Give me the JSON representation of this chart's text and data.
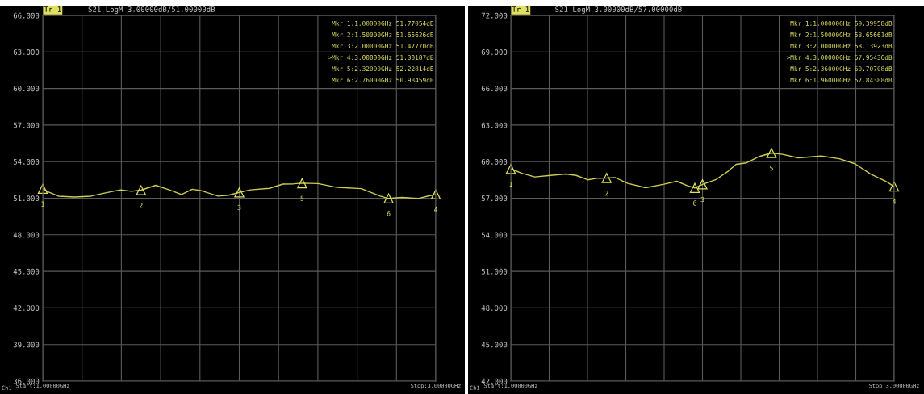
{
  "chart_data": [
    {
      "type": "line",
      "title": "S21 LogM 3.00000dB/51.00000dB",
      "x": [
        1.0,
        1.025,
        1.08,
        1.162,
        1.245,
        1.314,
        1.396,
        1.451,
        1.5,
        1.575,
        1.644,
        1.706,
        1.761,
        1.809,
        1.892,
        1.947,
        2.0,
        2.057,
        2.153,
        2.222,
        2.277,
        2.32,
        2.401,
        2.498,
        2.621,
        2.718,
        2.76,
        2.828,
        2.911,
        2.966,
        3.0
      ],
      "series": [
        {
          "color": "#cccc55",
          "values": [
            51.77,
            51.54,
            51.17,
            51.1,
            51.17,
            51.42,
            51.69,
            51.57,
            51.66,
            52.06,
            51.69,
            51.3,
            51.74,
            51.61,
            51.17,
            51.25,
            51.48,
            51.69,
            51.81,
            52.16,
            52.18,
            52.23,
            52.2,
            51.89,
            51.79,
            51.17,
            50.98,
            51.07,
            50.98,
            51.2,
            51.3
          ]
        }
      ],
      "xlim": [
        1,
        3
      ],
      "xticks": [
        {
          "value": 1,
          "label": "Start:1.00000GHz"
        },
        {
          "value": 1.2,
          "label": null
        },
        {
          "value": 1.4,
          "label": null
        },
        {
          "value": 1.6,
          "label": null
        },
        {
          "value": 1.8,
          "label": null
        },
        {
          "value": 2.0,
          "label": null
        },
        {
          "value": 2.2,
          "label": null
        },
        {
          "value": 2.4,
          "label": null
        },
        {
          "value": 2.6,
          "label": null
        },
        {
          "value": 2.8,
          "label": null
        },
        {
          "value": 3,
          "label": "Stop:3.00000GHz"
        }
      ],
      "ylim": [
        36,
        66
      ],
      "yticks": [
        {
          "value": 36,
          "label": "36.000"
        },
        {
          "value": 39,
          "label": "39.000"
        },
        {
          "value": 42,
          "label": "42.000"
        },
        {
          "value": 45,
          "label": "45.000"
        },
        {
          "value": 48,
          "label": "48.000"
        },
        {
          "value": 51,
          "label": "51.000"
        },
        {
          "value": 54,
          "label": "54.000"
        },
        {
          "value": 57,
          "label": "57.000"
        },
        {
          "value": 60,
          "label": "60.000"
        },
        {
          "value": 63,
          "label": "63.000"
        },
        {
          "value": 66,
          "label": "66.000"
        }
      ],
      "grid": true,
      "annotations": [
        "Tr 1",
        "Mkr 1:1.00000GHz 51.77054dB",
        "Mkr 2:1.50000GHz 51.65626dB",
        "Mkr 3:2.00000GHz 51.47770dB",
        ">Mkr 4:3.00000GHz 51.30187dB",
        "Mkr 5:2.32000GHz 52.22814dB",
        "Mkr 6:2.76000GHz 50.98459dB",
        {
          "text": "1",
          "x": 1.0,
          "y": 51.77054
        },
        {
          "text": "2",
          "x": 1.5,
          "y": 51.65626
        },
        {
          "text": "3",
          "x": 2.0,
          "y": 51.4777
        },
        {
          "text": "4",
          "x": 3.0,
          "y": 51.30187
        },
        {
          "text": "5",
          "x": 2.32,
          "y": 52.22814
        },
        {
          "text": "6",
          "x": 2.76,
          "y": 50.98459
        },
        "Ch1"
      ]
    },
    {
      "type": "line",
      "title": "S21 LogM 3.00000dB/57.00000dB",
      "x": [
        1.0,
        1.058,
        1.125,
        1.206,
        1.287,
        1.341,
        1.401,
        1.448,
        1.5,
        1.543,
        1.61,
        1.704,
        1.799,
        1.866,
        1.92,
        1.96,
        2.0,
        2.068,
        2.135,
        2.176,
        2.23,
        2.297,
        2.36,
        2.418,
        2.499,
        2.62,
        2.714,
        2.795,
        2.876,
        2.957,
        3.0
      ],
      "series": [
        {
          "color": "#cccc55",
          "values": [
            59.4,
            59.04,
            58.75,
            58.87,
            58.99,
            58.87,
            58.51,
            58.63,
            58.66,
            58.7,
            58.22,
            57.86,
            58.15,
            58.39,
            58.03,
            57.84,
            58.14,
            58.51,
            59.23,
            59.78,
            59.9,
            60.43,
            60.71,
            60.6,
            60.31,
            60.46,
            60.24,
            59.83,
            58.99,
            58.39,
            57.95
          ]
        }
      ],
      "xlim": [
        1,
        3
      ],
      "xticks": [
        {
          "value": 1,
          "label": "Start:1.00000GHz"
        },
        {
          "value": 1.2,
          "label": null
        },
        {
          "value": 1.4,
          "label": null
        },
        {
          "value": 1.6,
          "label": null
        },
        {
          "value": 1.8,
          "label": null
        },
        {
          "value": 2.0,
          "label": null
        },
        {
          "value": 2.2,
          "label": null
        },
        {
          "value": 2.4,
          "label": null
        },
        {
          "value": 2.6,
          "label": null
        },
        {
          "value": 2.8,
          "label": null
        },
        {
          "value": 3,
          "label": "Stop:3.00000GHz"
        }
      ],
      "ylim": [
        42,
        72
      ],
      "yticks": [
        {
          "value": 42,
          "label": "42.000"
        },
        {
          "value": 45,
          "label": "45.000"
        },
        {
          "value": 48,
          "label": "48.000"
        },
        {
          "value": 51,
          "label": "51.000"
        },
        {
          "value": 54,
          "label": "54.000"
        },
        {
          "value": 57,
          "label": "57.000"
        },
        {
          "value": 60,
          "label": "60.000"
        },
        {
          "value": 63,
          "label": "63.000"
        },
        {
          "value": 66,
          "label": "66.000"
        },
        {
          "value": 69,
          "label": "69.000"
        },
        {
          "value": 72,
          "label": "72.000"
        }
      ],
      "grid": true,
      "annotations": [
        "Tr 1",
        "Mkr 1:1.00000GHz 59.39958dB",
        "Mkr 2:1.50000GHz 58.65661dB",
        "Mkr 3:2.00000GHz 58.13923dB",
        ">Mkr 4:3.00000GHz 57.95436dB",
        "Mkr 5:2.36000GHz 60.70708dB",
        "Mkr 6:1.96000GHz 57.84388dB",
        {
          "text": "1",
          "x": 1.0,
          "y": 59.39958
        },
        {
          "text": "2",
          "x": 1.5,
          "y": 58.65661
        },
        {
          "text": "3",
          "x": 2.0,
          "y": 58.13923
        },
        {
          "text": "4",
          "x": 3.0,
          "y": 57.95436
        },
        {
          "text": "5",
          "x": 2.36,
          "y": 60.70708
        },
        {
          "text": "6",
          "x": 1.96,
          "y": 57.84388
        },
        "Ch1"
      ]
    }
  ]
}
